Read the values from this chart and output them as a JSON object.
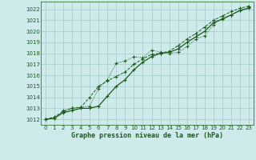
{
  "title": "Graphe pression niveau de la mer (hPa)",
  "bg_color": "#ceeaea",
  "grid_color": "#aacece",
  "line_color": "#1a5c1a",
  "xlim": [
    -0.5,
    23.5
  ],
  "ylim": [
    1011.5,
    1022.7
  ],
  "yticks": [
    1012,
    1013,
    1014,
    1015,
    1016,
    1017,
    1018,
    1019,
    1020,
    1021,
    1022
  ],
  "xticks": [
    0,
    1,
    2,
    3,
    4,
    5,
    6,
    7,
    8,
    9,
    10,
    11,
    12,
    13,
    14,
    15,
    16,
    17,
    18,
    19,
    20,
    21,
    22,
    23
  ],
  "series1_x": [
    0,
    1,
    2,
    3,
    4,
    5,
    6,
    7,
    8,
    9,
    10,
    11,
    12,
    13,
    14,
    15,
    16,
    17,
    18,
    19,
    20,
    21,
    22,
    23
  ],
  "series1_y": [
    1012.0,
    1012.1,
    1012.8,
    1013.0,
    1013.1,
    1013.2,
    1014.8,
    1015.6,
    1017.1,
    1017.3,
    1017.7,
    1017.6,
    1018.3,
    1018.1,
    1018.0,
    1018.1,
    1018.6,
    1019.3,
    1019.6,
    1020.6,
    1021.2,
    1021.5,
    1021.9,
    1022.2
  ],
  "series2_x": [
    0,
    1,
    2,
    3,
    4,
    5,
    6,
    7,
    8,
    9,
    10,
    11,
    12,
    13,
    14,
    15,
    16,
    17,
    18,
    19,
    20,
    21,
    22,
    23
  ],
  "series2_y": [
    1012.0,
    1012.1,
    1012.6,
    1012.8,
    1013.0,
    1013.0,
    1013.2,
    1014.1,
    1015.0,
    1015.6,
    1016.5,
    1017.2,
    1017.7,
    1018.0,
    1018.1,
    1018.4,
    1019.0,
    1019.5,
    1020.0,
    1020.8,
    1021.1,
    1021.5,
    1021.9,
    1022.1
  ],
  "series3_x": [
    0,
    1,
    2,
    3,
    4,
    5,
    6,
    7,
    8,
    9,
    10,
    11,
    12,
    13,
    14,
    15,
    16,
    17,
    18,
    19,
    20,
    21,
    22,
    23
  ],
  "series3_y": [
    1012.0,
    1012.2,
    1012.7,
    1013.0,
    1013.1,
    1014.0,
    1015.0,
    1015.5,
    1015.9,
    1016.3,
    1017.0,
    1017.5,
    1017.9,
    1018.0,
    1018.2,
    1018.7,
    1019.3,
    1019.8,
    1020.4,
    1021.0,
    1021.4,
    1021.8,
    1022.1,
    1022.3
  ]
}
